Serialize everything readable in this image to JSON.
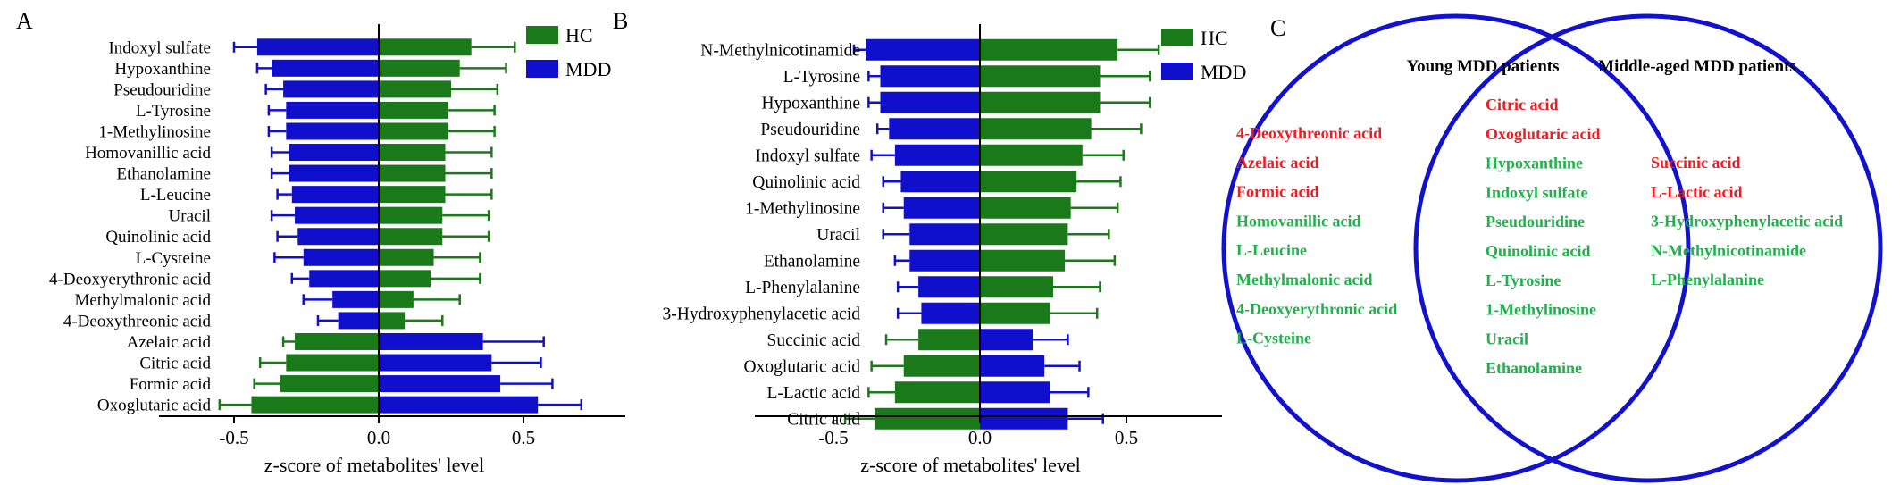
{
  "colors": {
    "hc": "#1a7a1a",
    "mdd": "#1010cc",
    "venn_red": "#ee1c24",
    "venn_green": "#22b04c",
    "venn_circle": "#1212cc",
    "axis": "#000000"
  },
  "chart_data": [
    {
      "type": "bar",
      "orientation": "horizontal",
      "panel_label": "A",
      "xlabel": "z-score of metabolites' level",
      "xlim": [
        -0.75,
        0.8
      ],
      "xticks": [
        -0.5,
        0.0,
        0.5
      ],
      "xtick_labels": [
        "-0.5",
        "0.0",
        "0.5"
      ],
      "legend": [
        {
          "name": "HC",
          "color_key": "hc"
        },
        {
          "name": "MDD",
          "color_key": "mdd"
        }
      ],
      "legend_position": "top-right",
      "categories": [
        "Indoxyl sulfate",
        "Hypoxanthine",
        "Pseudouridine",
        "L-Tyrosine",
        "1-Methylinosine",
        "Homovanillic acid",
        "Ethanolamine",
        "L-Leucine",
        "Uracil",
        "Quinolinic acid",
        "L-Cysteine",
        "4-Deoxyerythronic acid",
        "Methylmalonic acid",
        "4-Deoxythreonic acid",
        "Azelaic acid",
        "Citric acid",
        "Formic acid",
        "Oxoglutaric acid"
      ],
      "series": [
        {
          "name": "HC",
          "color_key": "hc",
          "values": [
            0.32,
            0.28,
            0.25,
            0.24,
            0.24,
            0.23,
            0.23,
            0.23,
            0.22,
            0.22,
            0.19,
            0.18,
            0.12,
            0.09,
            -0.29,
            -0.32,
            -0.34,
            -0.44
          ],
          "errors": [
            0.15,
            0.16,
            0.16,
            0.16,
            0.16,
            0.16,
            0.16,
            0.16,
            0.16,
            0.16,
            0.16,
            0.17,
            0.16,
            0.13,
            0.04,
            0.09,
            0.09,
            0.11
          ]
        },
        {
          "name": "MDD",
          "color_key": "mdd",
          "values": [
            -0.42,
            -0.37,
            -0.33,
            -0.32,
            -0.32,
            -0.31,
            -0.31,
            -0.3,
            -0.29,
            -0.28,
            -0.26,
            -0.24,
            -0.16,
            -0.14,
            0.36,
            0.39,
            0.42,
            0.55
          ],
          "errors": [
            0.08,
            0.05,
            0.06,
            0.06,
            0.06,
            0.06,
            0.06,
            0.05,
            0.08,
            0.07,
            0.1,
            0.06,
            0.1,
            0.07,
            0.21,
            0.17,
            0.18,
            0.15
          ]
        }
      ]
    },
    {
      "type": "bar",
      "orientation": "horizontal",
      "panel_label": "B",
      "xlabel": "z-score of metabolites' level",
      "xlim": [
        -0.75,
        0.8
      ],
      "xticks": [
        -0.5,
        0.0,
        0.5
      ],
      "xtick_labels": [
        "-0.5",
        "0.0",
        "0.5"
      ],
      "legend": [
        {
          "name": "HC",
          "color_key": "hc"
        },
        {
          "name": "MDD",
          "color_key": "mdd"
        }
      ],
      "legend_position": "top-right",
      "categories": [
        "N-Methylnicotinamide",
        "L-Tyrosine",
        "Hypoxanthine",
        "Pseudouridine",
        "Indoxyl sulfate",
        "Quinolinic acid",
        "1-Methylinosine",
        "Uracil",
        "Ethanolamine",
        "L-Phenylalanine",
        "3-Hydroxyphenylacetic acid",
        "Succinic acid",
        "Oxoglutaric acid",
        "L-Lactic acid",
        "Citric acid"
      ],
      "series": [
        {
          "name": "HC",
          "color_key": "hc",
          "values": [
            0.47,
            0.41,
            0.41,
            0.38,
            0.35,
            0.33,
            0.31,
            0.3,
            0.29,
            0.25,
            0.24,
            -0.21,
            -0.26,
            -0.29,
            -0.36
          ],
          "errors": [
            0.14,
            0.17,
            0.17,
            0.17,
            0.14,
            0.15,
            0.16,
            0.14,
            0.17,
            0.16,
            0.16,
            0.11,
            0.11,
            0.09,
            0.1
          ]
        },
        {
          "name": "MDD",
          "color_key": "mdd",
          "values": [
            -0.39,
            -0.34,
            -0.34,
            -0.31,
            -0.29,
            -0.27,
            -0.26,
            -0.24,
            -0.24,
            -0.21,
            -0.2,
            0.18,
            0.22,
            0.24,
            0.3
          ],
          "errors": [
            0.04,
            0.04,
            0.04,
            0.04,
            0.08,
            0.06,
            0.07,
            0.09,
            0.05,
            0.07,
            0.08,
            0.12,
            0.12,
            0.13,
            0.12
          ]
        }
      ]
    }
  ],
  "venn": {
    "panel_label": "C",
    "left_title": "Young MDD patients",
    "right_title": "Middle-aged MDD patients",
    "left_items": [
      {
        "text": "4-Deoxythreonic acid",
        "color_key": "venn_red"
      },
      {
        "text": "Azelaic acid",
        "color_key": "venn_red"
      },
      {
        "text": "Formic acid",
        "color_key": "venn_red"
      },
      {
        "text": "Homovanillic acid",
        "color_key": "venn_green"
      },
      {
        "text": "L-Leucine",
        "color_key": "venn_green"
      },
      {
        "text": "Methylmalonic acid",
        "color_key": "venn_green"
      },
      {
        "text": "4-Deoxyerythronic acid",
        "color_key": "venn_green"
      },
      {
        "text": "L-Cysteine",
        "color_key": "venn_green"
      }
    ],
    "middle_items": [
      {
        "text": "Citric acid",
        "color_key": "venn_red"
      },
      {
        "text": "Oxoglutaric acid",
        "color_key": "venn_red"
      },
      {
        "text": "Hypoxanthine",
        "color_key": "venn_green"
      },
      {
        "text": "Indoxyl sulfate",
        "color_key": "venn_green"
      },
      {
        "text": "Pseudouridine",
        "color_key": "venn_green"
      },
      {
        "text": "Quinolinic acid",
        "color_key": "venn_green"
      },
      {
        "text": "L-Tyrosine",
        "color_key": "venn_green"
      },
      {
        "text": "1-Methylinosine",
        "color_key": "venn_green"
      },
      {
        "text": "Uracil",
        "color_key": "venn_green"
      },
      {
        "text": "Ethanolamine",
        "color_key": "venn_green"
      }
    ],
    "right_items": [
      {
        "text": "Succinic acid",
        "color_key": "venn_red"
      },
      {
        "text": "L-Lactic acid",
        "color_key": "venn_red"
      },
      {
        "text": "3-Hydroxyphenylacetic acid",
        "color_key": "venn_green"
      },
      {
        "text": "N-Methylnicotinamide",
        "color_key": "venn_green"
      },
      {
        "text": "L-Phenylalanine",
        "color_key": "venn_green"
      }
    ]
  }
}
